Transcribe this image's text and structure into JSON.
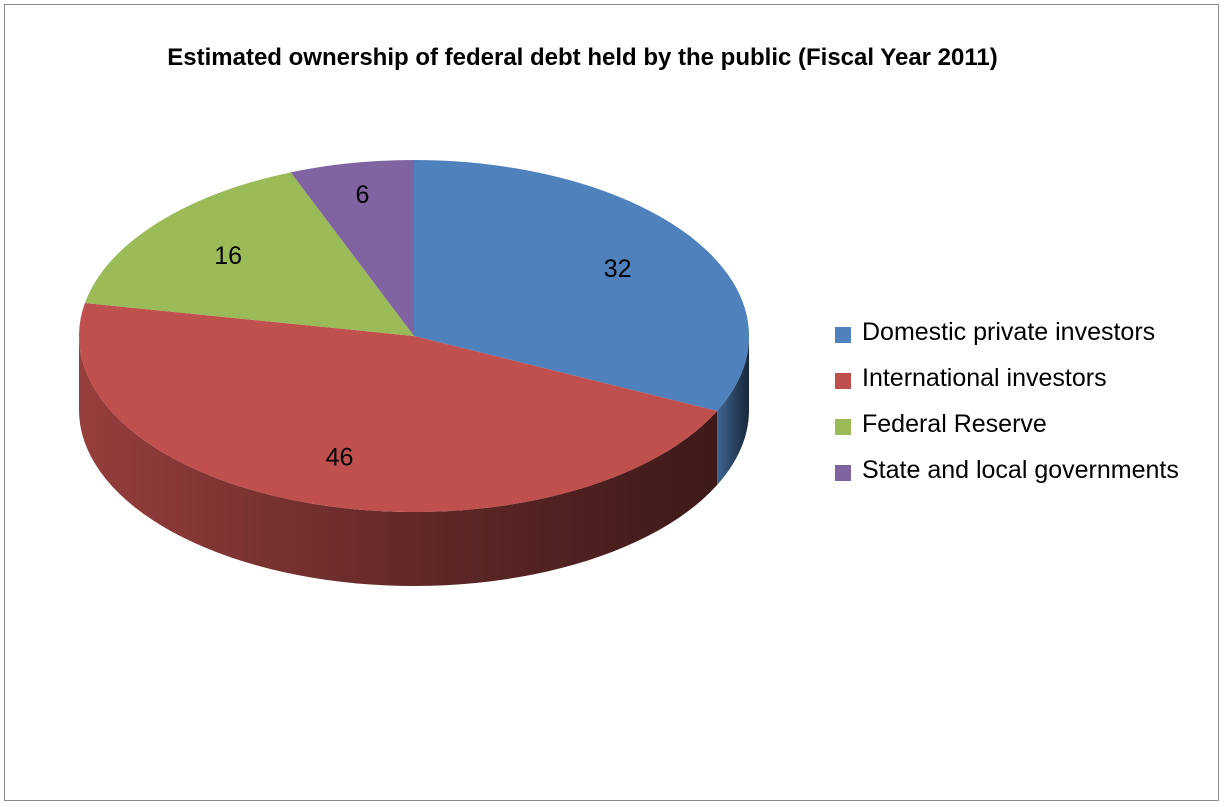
{
  "chart_data": {
    "type": "pie",
    "title": "Estimated ownership of federal debt held by the public (Fiscal Year 2011)",
    "categories": [
      "Domestic private investors",
      "International investors",
      "Federal Reserve",
      "State and local governments"
    ],
    "values": [
      32,
      46,
      16,
      6
    ],
    "data_labels": [
      "32",
      "46",
      "16",
      "6"
    ],
    "colors": [
      "#4F81BD",
      "#C0504D",
      "#9BBB59",
      "#8064A2"
    ],
    "legend_position": "right",
    "style": "3d"
  }
}
